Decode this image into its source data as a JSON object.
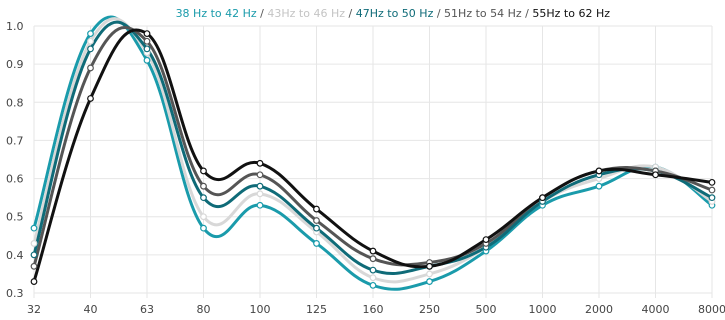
{
  "chart_data": {
    "type": "line",
    "categories": [
      "32",
      "40",
      "63",
      "80",
      "100",
      "125",
      "160",
      "250",
      "500",
      "1000",
      "2000",
      "4000",
      "8000"
    ],
    "ylim": [
      0.3,
      1.0
    ],
    "y_ticks": [
      "0.3",
      "0.4",
      "0.5",
      "0.6",
      "0.7",
      "0.8",
      "0.9",
      "1.0"
    ],
    "grid": true,
    "legend_position": "top-right",
    "legend_separator": " / ",
    "series": [
      {
        "name": "38 Hz to 42 Hz",
        "color": "#1a9bab",
        "values": [
          0.47,
          0.98,
          0.91,
          0.47,
          0.53,
          0.43,
          0.32,
          0.33,
          0.41,
          0.53,
          0.58,
          0.63,
          0.53
        ]
      },
      {
        "name": "43Hz to 46 Hz",
        "color": "#d8d8d8",
        "values": [
          0.43,
          0.96,
          0.93,
          0.5,
          0.56,
          0.46,
          0.34,
          0.35,
          0.42,
          0.54,
          0.6,
          0.63,
          0.54
        ]
      },
      {
        "name": "47Hz to 50 Hz",
        "color": "#0f6b78",
        "values": [
          0.4,
          0.94,
          0.94,
          0.55,
          0.58,
          0.47,
          0.36,
          0.37,
          0.42,
          0.54,
          0.61,
          0.62,
          0.55
        ]
      },
      {
        "name": "51Hz to 54 Hz",
        "color": "#555555",
        "values": [
          0.37,
          0.89,
          0.96,
          0.58,
          0.61,
          0.49,
          0.39,
          0.38,
          0.43,
          0.55,
          0.62,
          0.62,
          0.57
        ]
      },
      {
        "name": "55Hz to 62 Hz",
        "color": "#111111",
        "values": [
          0.33,
          0.81,
          0.98,
          0.62,
          0.64,
          0.52,
          0.41,
          0.37,
          0.44,
          0.55,
          0.62,
          0.61,
          0.59
        ]
      }
    ]
  }
}
